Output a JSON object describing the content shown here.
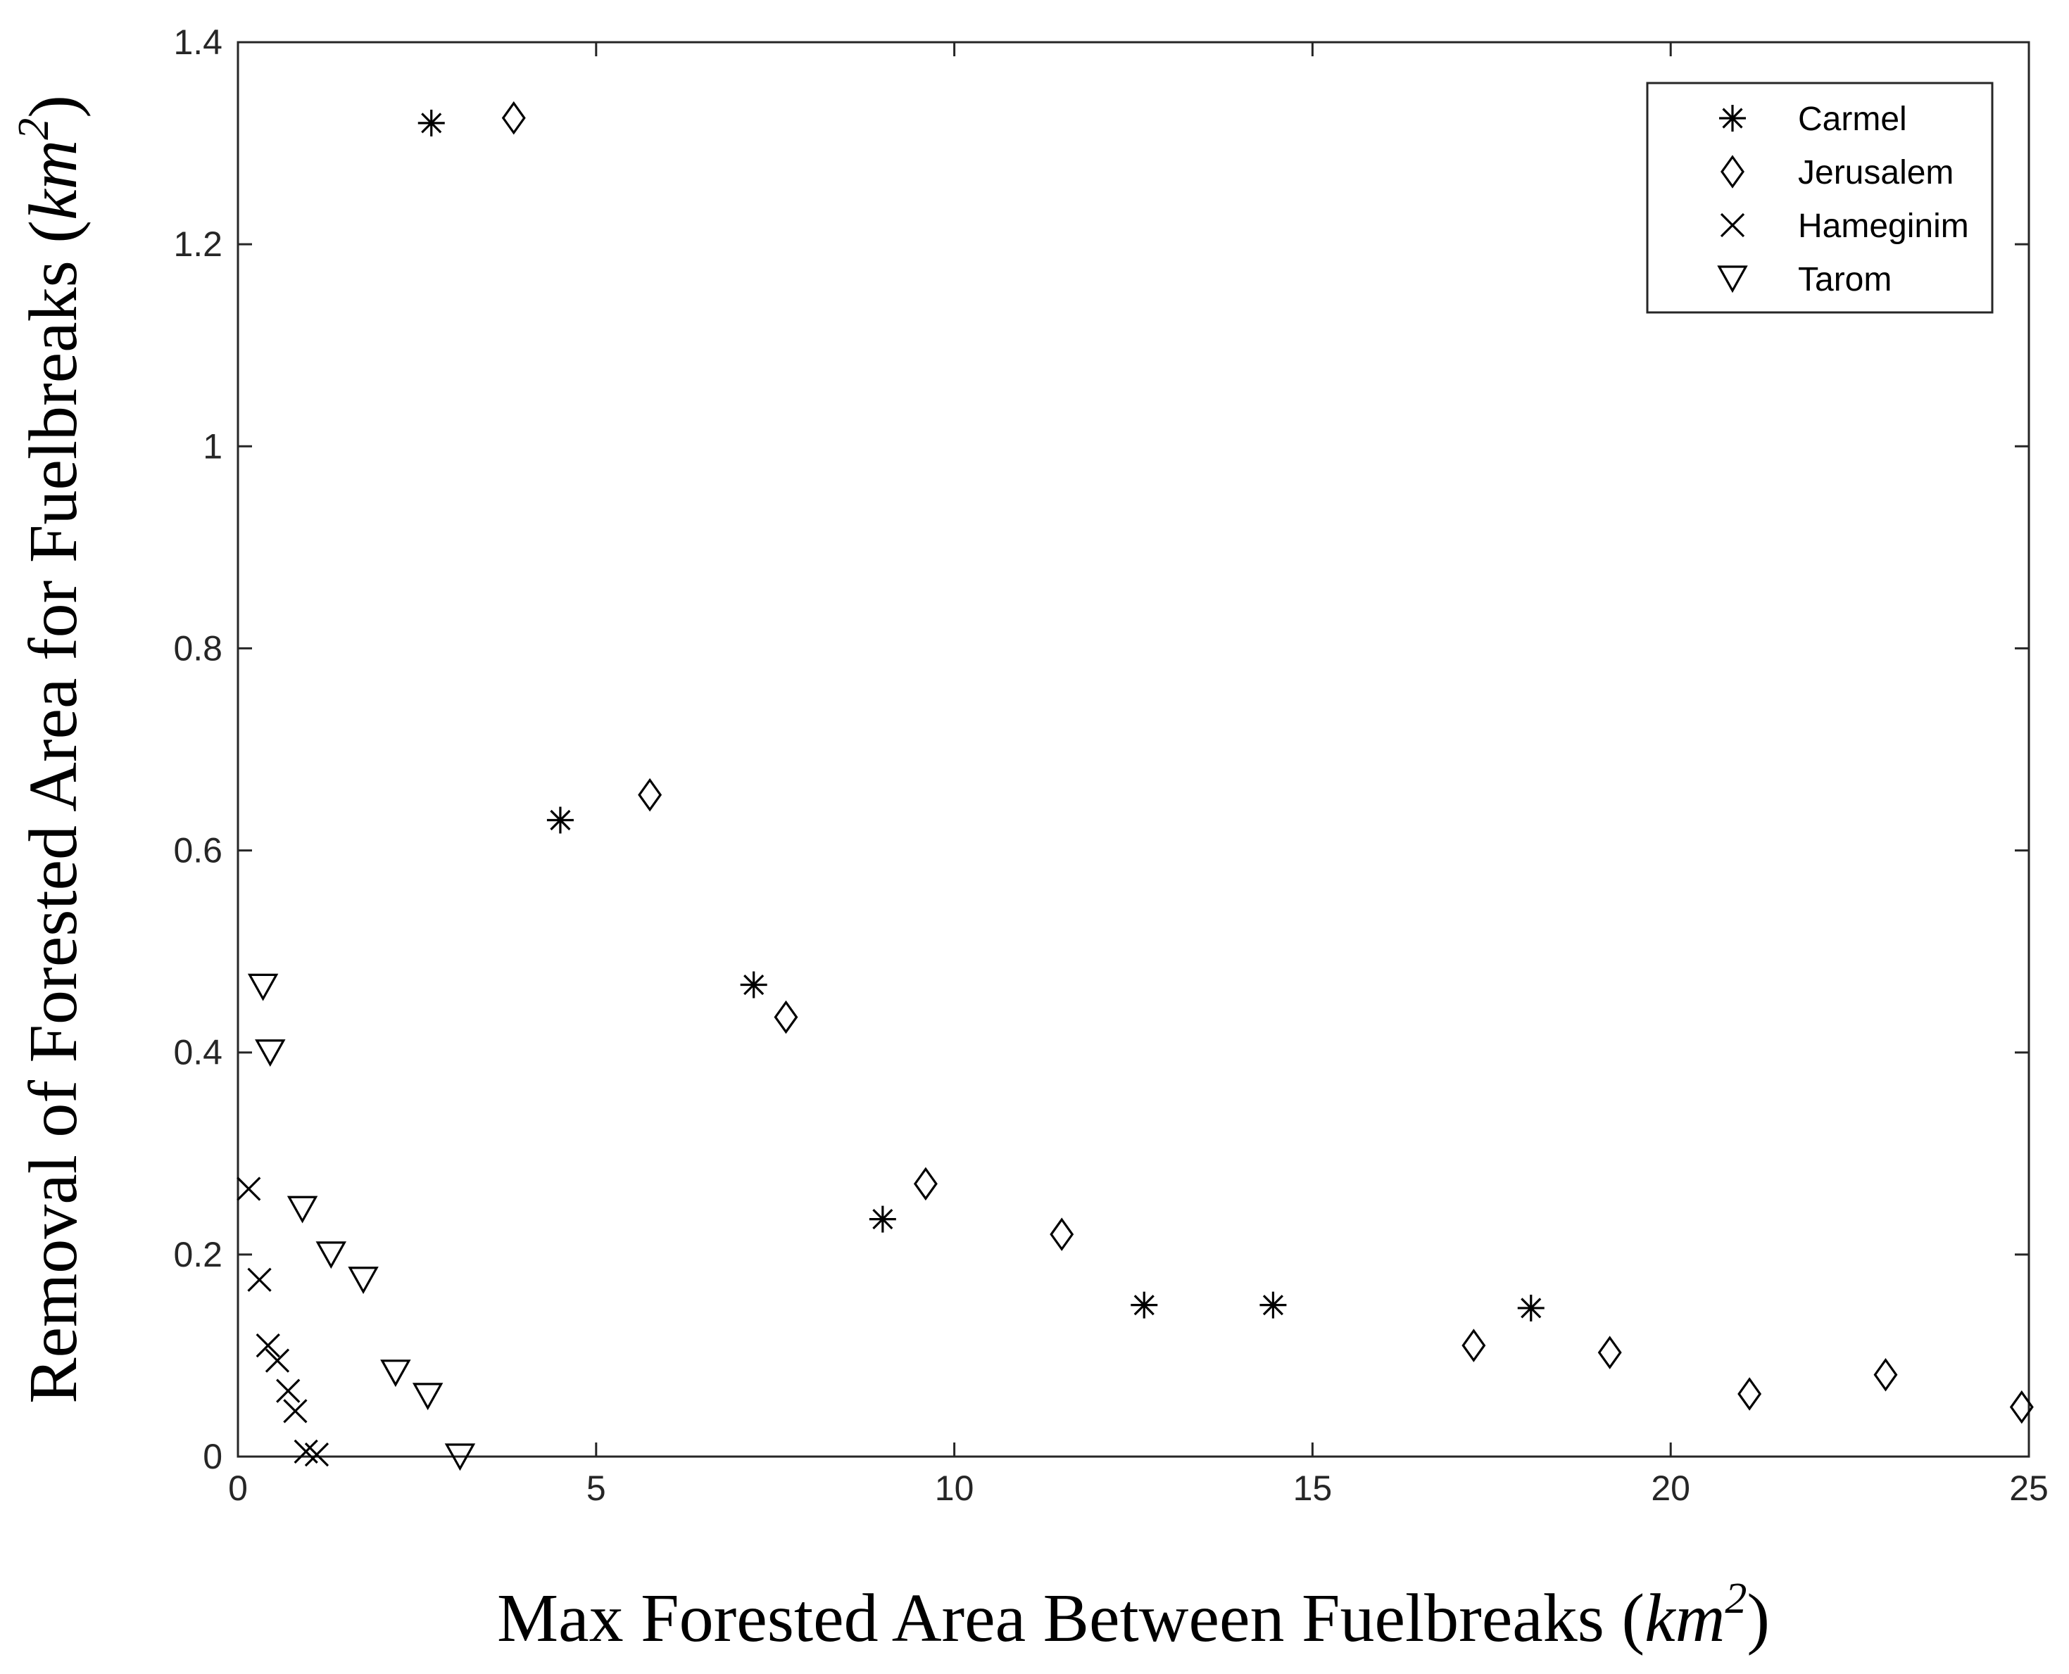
{
  "chart_data": {
    "type": "scatter",
    "title": "",
    "xlabel": "Max Forested Area Between Fuelbreaks",
    "ylabel": "Removal of Forested Area for Fuelbreaks",
    "unit_base": "km",
    "unit_exp": "2",
    "xlim": [
      0,
      25
    ],
    "ylim": [
      0,
      1.4
    ],
    "xticks": [
      0,
      5,
      10,
      15,
      20,
      25
    ],
    "xtick_labels": [
      "0",
      "5",
      "10",
      "15",
      "20",
      "25"
    ],
    "yticks": [
      0,
      0.2,
      0.4,
      0.6,
      0.8,
      1,
      1.2,
      1.4
    ],
    "ytick_labels": [
      "0",
      "0.2",
      "0.4",
      "0.6",
      "0.8",
      "1",
      "1.2",
      "1.4"
    ],
    "grid": false,
    "legend_position": "top-right",
    "series": [
      {
        "name": "Carmel",
        "marker": "asterisk",
        "color": "#000000",
        "x": [
          2.7,
          4.5,
          7.2,
          9.0,
          12.65,
          14.45,
          18.05
        ],
        "y": [
          1.32,
          0.63,
          0.467,
          0.235,
          0.15,
          0.15,
          0.147
        ]
      },
      {
        "name": "Jerusalem",
        "marker": "diamond",
        "color": "#000000",
        "x": [
          3.85,
          5.75,
          7.65,
          9.6,
          11.5,
          17.25,
          19.15,
          21.1,
          23.0,
          24.9
        ],
        "y": [
          1.325,
          0.655,
          0.435,
          0.27,
          0.22,
          0.11,
          0.103,
          0.062,
          0.081,
          0.049
        ]
      },
      {
        "name": "Hameginim",
        "marker": "x",
        "color": "#000000",
        "x": [
          0.15,
          0.3,
          0.42,
          0.55,
          0.7,
          0.8,
          0.95,
          1.1
        ],
        "y": [
          0.265,
          0.175,
          0.11,
          0.095,
          0.065,
          0.045,
          0.005,
          0.002
        ]
      },
      {
        "name": "Tarom",
        "marker": "triangle-down",
        "color": "#000000",
        "x": [
          0.35,
          0.45,
          0.9,
          1.3,
          1.75,
          2.2,
          2.65,
          3.1
        ],
        "y": [
          0.465,
          0.4,
          0.245,
          0.2,
          0.175,
          0.083,
          0.06,
          0.0
        ]
      }
    ]
  }
}
